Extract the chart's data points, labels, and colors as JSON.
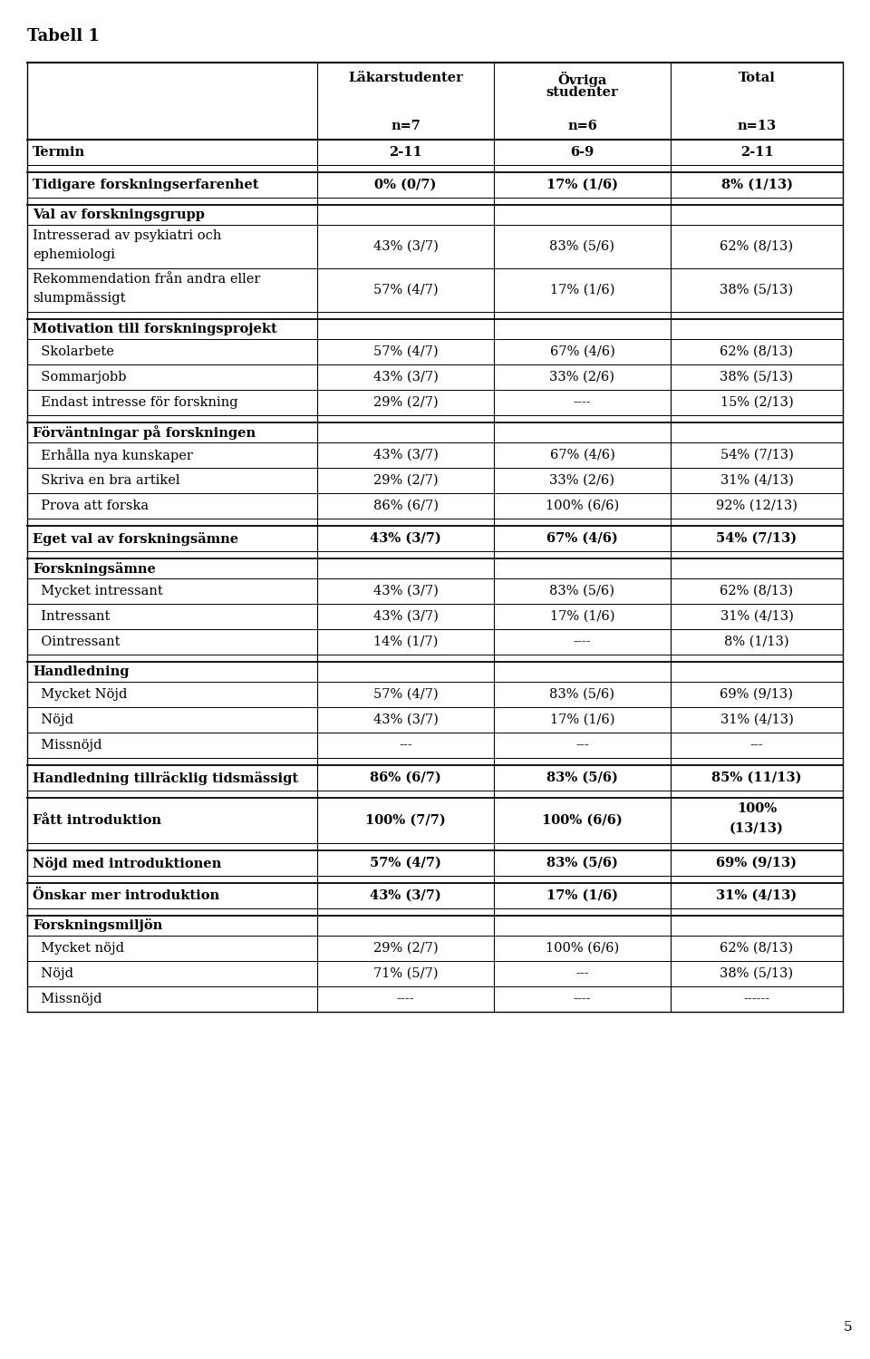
{
  "title": "Tabell 1",
  "rows": [
    {
      "label": "",
      "bold": false,
      "indent": false,
      "c1": "Läkarstudenter\n\nn=7",
      "c2": "Övriga\nstudenter\nn=6",
      "c3": "Total\n\nn=13",
      "is_header": true,
      "thick_bottom": true
    },
    {
      "label": "Termin",
      "bold": true,
      "indent": false,
      "c1": "2-11",
      "c2": "6-9",
      "c3": "2-11",
      "thick_bottom": false
    },
    {
      "label": "",
      "bold": false,
      "indent": false,
      "c1": "",
      "c2": "",
      "c3": "",
      "spacer": true
    },
    {
      "label": "Tidigare forskningserfarenhet",
      "bold": true,
      "indent": false,
      "c1": "0% (0/7)",
      "c2": "17% (1/6)",
      "c3": "8% (1/13)",
      "thick_bottom": false
    },
    {
      "label": "",
      "bold": false,
      "indent": false,
      "c1": "",
      "c2": "",
      "c3": "",
      "spacer": true
    },
    {
      "label": "Val av forskningsgrupp",
      "bold": true,
      "indent": false,
      "c1": "",
      "c2": "",
      "c3": "",
      "thick_bottom": false
    },
    {
      "label": "Intresserad av psykiatri och\nephemiologi",
      "bold": false,
      "indent": true,
      "c1": "43% (3/7)",
      "c2": "83% (5/6)",
      "c3": "62% (8/13)",
      "thick_bottom": false
    },
    {
      "label": "Rekommendation från andra eller\nslumpmässigt",
      "bold": false,
      "indent": true,
      "c1": "57% (4/7)",
      "c2": "17% (1/6)",
      "c3": "38% (5/13)",
      "thick_bottom": false
    },
    {
      "label": "",
      "bold": false,
      "indent": false,
      "c1": "",
      "c2": "",
      "c3": "",
      "spacer": true
    },
    {
      "label": "Motivation till forskningsprojekt",
      "bold": true,
      "indent": false,
      "c1": "",
      "c2": "",
      "c3": "",
      "thick_bottom": false
    },
    {
      "label": "  Skolarbete",
      "bold": false,
      "indent": true,
      "c1": "57% (4/7)",
      "c2": "67% (4/6)",
      "c3": "62% (8/13)",
      "thick_bottom": false
    },
    {
      "label": "  Sommarjobb",
      "bold": false,
      "indent": true,
      "c1": "43% (3/7)",
      "c2": "33% (2/6)",
      "c3": "38% (5/13)",
      "thick_bottom": false
    },
    {
      "label": "  Endast intresse för forskning",
      "bold": false,
      "indent": true,
      "c1": "29% (2/7)",
      "c2": "----",
      "c3": "15% (2/13)",
      "thick_bottom": false
    },
    {
      "label": "",
      "bold": false,
      "indent": false,
      "c1": "",
      "c2": "",
      "c3": "",
      "spacer": true
    },
    {
      "label": "Förväntningar på forskningen",
      "bold": true,
      "indent": false,
      "c1": "",
      "c2": "",
      "c3": "",
      "thick_bottom": false
    },
    {
      "label": "  Erhålla nya kunskaper",
      "bold": false,
      "indent": true,
      "c1": "43% (3/7)",
      "c2": "67% (4/6)",
      "c3": "54% (7/13)",
      "thick_bottom": false
    },
    {
      "label": "  Skriva en bra artikel",
      "bold": false,
      "indent": true,
      "c1": "29% (2/7)",
      "c2": "33% (2/6)",
      "c3": "31% (4/13)",
      "thick_bottom": false
    },
    {
      "label": "  Prova att forska",
      "bold": false,
      "indent": true,
      "c1": "86% (6/7)",
      "c2": "100% (6/6)",
      "c3": "92% (12/13)",
      "thick_bottom": false
    },
    {
      "label": "",
      "bold": false,
      "indent": false,
      "c1": "",
      "c2": "",
      "c3": "",
      "spacer": true
    },
    {
      "label": "Eget val av forskningsämne",
      "bold": true,
      "indent": false,
      "c1": "43% (3/7)",
      "c2": "67% (4/6)",
      "c3": "54% (7/13)",
      "thick_bottom": false
    },
    {
      "label": "",
      "bold": false,
      "indent": false,
      "c1": "",
      "c2": "",
      "c3": "",
      "spacer": true
    },
    {
      "label": "Forskningsämne",
      "bold": true,
      "indent": false,
      "c1": "",
      "c2": "",
      "c3": "",
      "thick_bottom": false
    },
    {
      "label": "  Mycket intressant",
      "bold": false,
      "indent": true,
      "c1": "43% (3/7)",
      "c2": "83% (5/6)",
      "c3": "62% (8/13)",
      "thick_bottom": false
    },
    {
      "label": "  Intressant",
      "bold": false,
      "indent": true,
      "c1": "43% (3/7)",
      "c2": "17% (1/6)",
      "c3": "31% (4/13)",
      "thick_bottom": false
    },
    {
      "label": "  Ointressant",
      "bold": false,
      "indent": true,
      "c1": "14% (1/7)",
      "c2": "----",
      "c3": "8% (1/13)",
      "thick_bottom": false
    },
    {
      "label": "",
      "bold": false,
      "indent": false,
      "c1": "",
      "c2": "",
      "c3": "",
      "spacer": true
    },
    {
      "label": "Handledning",
      "bold": true,
      "indent": false,
      "c1": "",
      "c2": "",
      "c3": "",
      "thick_bottom": false
    },
    {
      "label": "  Mycket Nöjd",
      "bold": false,
      "indent": true,
      "c1": "57% (4/7)",
      "c2": "83% (5/6)",
      "c3": "69% (9/13)",
      "thick_bottom": false
    },
    {
      "label": "  Nöjd",
      "bold": false,
      "indent": true,
      "c1": "43% (3/7)",
      "c2": "17% (1/6)",
      "c3": "31% (4/13)",
      "thick_bottom": false
    },
    {
      "label": "  Missnöjd",
      "bold": false,
      "indent": true,
      "c1": "---",
      "c2": "---",
      "c3": "---",
      "thick_bottom": false
    },
    {
      "label": "",
      "bold": false,
      "indent": false,
      "c1": "",
      "c2": "",
      "c3": "",
      "spacer": true
    },
    {
      "label": "Handledning tillräcklig tidsmässigt",
      "bold": true,
      "indent": false,
      "c1": "86% (6/7)",
      "c2": "83% (5/6)",
      "c3": "85% (11/13)",
      "thick_bottom": false
    },
    {
      "label": "",
      "bold": false,
      "indent": false,
      "c1": "",
      "c2": "",
      "c3": "",
      "spacer": true
    },
    {
      "label": "Fått introduktion",
      "bold": true,
      "indent": false,
      "c1": "100% (7/7)",
      "c2": "100% (6/6)",
      "c3": "100%\n(13/13)",
      "thick_bottom": false
    },
    {
      "label": "",
      "bold": false,
      "indent": false,
      "c1": "",
      "c2": "",
      "c3": "",
      "spacer": true
    },
    {
      "label": "Nöjd med introduktionen",
      "bold": true,
      "indent": false,
      "c1": "57% (4/7)",
      "c2": "83% (5/6)",
      "c3": "69% (9/13)",
      "thick_bottom": false
    },
    {
      "label": "",
      "bold": false,
      "indent": false,
      "c1": "",
      "c2": "",
      "c3": "",
      "spacer": true
    },
    {
      "label": "Önskar mer introduktion",
      "bold": true,
      "indent": false,
      "c1": "43% (3/7)",
      "c2": "17% (1/6)",
      "c3": "31% (4/13)",
      "thick_bottom": false
    },
    {
      "label": "",
      "bold": false,
      "indent": false,
      "c1": "",
      "c2": "",
      "c3": "",
      "spacer": true
    },
    {
      "label": "Forskningsmiljön",
      "bold": true,
      "indent": false,
      "c1": "",
      "c2": "",
      "c3": "",
      "thick_bottom": false
    },
    {
      "label": "  Mycket nöjd",
      "bold": false,
      "indent": true,
      "c1": "29% (2/7)",
      "c2": "100% (6/6)",
      "c3": "62% (8/13)",
      "thick_bottom": false
    },
    {
      "label": "  Nöjd",
      "bold": false,
      "indent": true,
      "c1": "71% (5/7)",
      "c2": "---",
      "c3": "38% (5/13)",
      "thick_bottom": false
    },
    {
      "label": "  Missnöjd",
      "bold": false,
      "indent": true,
      "c1": "----",
      "c2": "----",
      "c3": "------",
      "thick_bottom": false
    }
  ],
  "page_number": "5",
  "background_color": "#ffffff",
  "text_color": "#000000",
  "font_size": 10.5,
  "title_font_size": 13
}
